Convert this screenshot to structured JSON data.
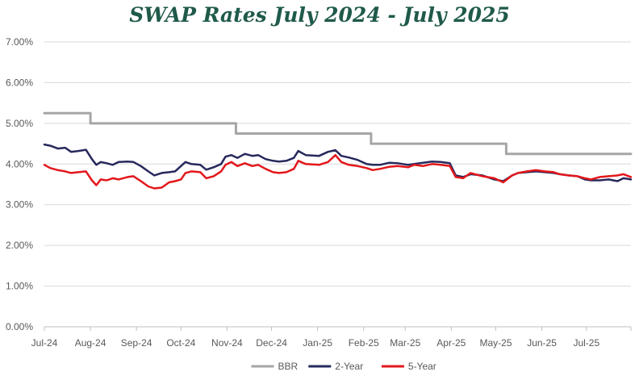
{
  "chart_data": {
    "type": "line",
    "title": "SWAP Rates July 2024 - July 2025",
    "xlabel": "",
    "ylabel": "",
    "y_tick_labels": [
      "0.00%",
      "1.00%",
      "2.00%",
      "3.00%",
      "4.00%",
      "5.00%",
      "6.00%",
      "7.00%"
    ],
    "ylim": [
      0,
      7
    ],
    "x_tick_labels": [
      "Jul-24",
      "Aug-24",
      "Sep-24",
      "Oct-24",
      "Nov-24",
      "Dec-24",
      "Jan-25",
      "Feb-25",
      "Mar-25",
      "Apr-25",
      "May-25",
      "Jun-25",
      "Jul-25"
    ],
    "x_range": [
      "2024-07-01",
      "2025-07-31"
    ],
    "grid": "horizontal",
    "legend_position": "bottom",
    "colors": {
      "BBR": "#a6a6a6",
      "2-Year": "#27295c",
      "5-Year": "#e3171b",
      "grid": "#d9d9d9",
      "axis": "#bfbfbf",
      "title": "#1f5a4a"
    },
    "series": [
      {
        "name": "BBR",
        "step": true,
        "points": [
          [
            "2024-07-01",
            5.25
          ],
          [
            "2024-08-01",
            5.0
          ],
          [
            "2024-11-07",
            4.75
          ],
          [
            "2025-02-06",
            4.5
          ],
          [
            "2025-05-08",
            4.25
          ],
          [
            "2025-07-31",
            4.25
          ]
        ]
      },
      {
        "name": "2-Year",
        "step": false,
        "points": [
          [
            "2024-07-01",
            4.48
          ],
          [
            "2024-07-05",
            4.45
          ],
          [
            "2024-07-10",
            4.38
          ],
          [
            "2024-07-15",
            4.4
          ],
          [
            "2024-07-19",
            4.3
          ],
          [
            "2024-07-24",
            4.32
          ],
          [
            "2024-07-29",
            4.35
          ],
          [
            "2024-08-02",
            4.12
          ],
          [
            "2024-08-05",
            3.98
          ],
          [
            "2024-08-08",
            4.05
          ],
          [
            "2024-08-12",
            4.02
          ],
          [
            "2024-08-16",
            3.98
          ],
          [
            "2024-08-20",
            4.05
          ],
          [
            "2024-08-26",
            4.06
          ],
          [
            "2024-08-30",
            4.05
          ],
          [
            "2024-09-04",
            3.95
          ],
          [
            "2024-09-09",
            3.82
          ],
          [
            "2024-09-13",
            3.72
          ],
          [
            "2024-09-18",
            3.78
          ],
          [
            "2024-09-23",
            3.8
          ],
          [
            "2024-09-27",
            3.82
          ],
          [
            "2024-10-01",
            3.95
          ],
          [
            "2024-10-04",
            4.05
          ],
          [
            "2024-10-08",
            4.0
          ],
          [
            "2024-10-14",
            3.98
          ],
          [
            "2024-10-18",
            3.86
          ],
          [
            "2024-10-23",
            3.92
          ],
          [
            "2024-10-28",
            4.0
          ],
          [
            "2024-10-31",
            4.18
          ],
          [
            "2024-11-04",
            4.22
          ],
          [
            "2024-11-08",
            4.15
          ],
          [
            "2024-11-13",
            4.25
          ],
          [
            "2024-11-18",
            4.2
          ],
          [
            "2024-11-22",
            4.22
          ],
          [
            "2024-11-27",
            4.12
          ],
          [
            "2024-12-02",
            4.08
          ],
          [
            "2024-12-06",
            4.06
          ],
          [
            "2024-12-11",
            4.08
          ],
          [
            "2024-12-16",
            4.15
          ],
          [
            "2024-12-19",
            4.32
          ],
          [
            "2024-12-24",
            4.22
          ],
          [
            "2025-01-02",
            4.2
          ],
          [
            "2025-01-08",
            4.3
          ],
          [
            "2025-01-13",
            4.34
          ],
          [
            "2025-01-17",
            4.2
          ],
          [
            "2025-01-22",
            4.16
          ],
          [
            "2025-01-28",
            4.1
          ],
          [
            "2025-02-03",
            4.0
          ],
          [
            "2025-02-07",
            3.98
          ],
          [
            "2025-02-12",
            3.98
          ],
          [
            "2025-02-18",
            4.03
          ],
          [
            "2025-02-24",
            4.02
          ],
          [
            "2025-03-03",
            3.98
          ],
          [
            "2025-03-07",
            4.0
          ],
          [
            "2025-03-13",
            4.03
          ],
          [
            "2025-03-19",
            4.06
          ],
          [
            "2025-03-25",
            4.05
          ],
          [
            "2025-03-31",
            4.02
          ],
          [
            "2025-04-04",
            3.72
          ],
          [
            "2025-04-09",
            3.68
          ],
          [
            "2025-04-14",
            3.75
          ],
          [
            "2025-04-22",
            3.72
          ],
          [
            "2025-04-30",
            3.62
          ],
          [
            "2025-05-06",
            3.58
          ],
          [
            "2025-05-12",
            3.72
          ],
          [
            "2025-05-16",
            3.78
          ],
          [
            "2025-05-22",
            3.8
          ],
          [
            "2025-05-28",
            3.82
          ],
          [
            "2025-06-03",
            3.8
          ],
          [
            "2025-06-09",
            3.78
          ],
          [
            "2025-06-13",
            3.75
          ],
          [
            "2025-06-19",
            3.72
          ],
          [
            "2025-06-25",
            3.7
          ],
          [
            "2025-06-30",
            3.62
          ],
          [
            "2025-07-04",
            3.6
          ],
          [
            "2025-07-10",
            3.6
          ],
          [
            "2025-07-16",
            3.62
          ],
          [
            "2025-07-22",
            3.58
          ],
          [
            "2025-07-26",
            3.65
          ],
          [
            "2025-07-31",
            3.62
          ]
        ]
      },
      {
        "name": "5-Year",
        "step": false,
        "points": [
          [
            "2024-07-01",
            3.98
          ],
          [
            "2024-07-05",
            3.9
          ],
          [
            "2024-07-10",
            3.85
          ],
          [
            "2024-07-15",
            3.82
          ],
          [
            "2024-07-19",
            3.78
          ],
          [
            "2024-07-24",
            3.8
          ],
          [
            "2024-07-29",
            3.82
          ],
          [
            "2024-08-02",
            3.6
          ],
          [
            "2024-08-05",
            3.48
          ],
          [
            "2024-08-08",
            3.62
          ],
          [
            "2024-08-12",
            3.6
          ],
          [
            "2024-08-16",
            3.65
          ],
          [
            "2024-08-20",
            3.62
          ],
          [
            "2024-08-26",
            3.68
          ],
          [
            "2024-08-30",
            3.7
          ],
          [
            "2024-09-04",
            3.58
          ],
          [
            "2024-09-09",
            3.45
          ],
          [
            "2024-09-13",
            3.4
          ],
          [
            "2024-09-18",
            3.42
          ],
          [
            "2024-09-23",
            3.55
          ],
          [
            "2024-09-27",
            3.58
          ],
          [
            "2024-10-01",
            3.62
          ],
          [
            "2024-10-04",
            3.78
          ],
          [
            "2024-10-08",
            3.82
          ],
          [
            "2024-10-14",
            3.8
          ],
          [
            "2024-10-18",
            3.65
          ],
          [
            "2024-10-23",
            3.7
          ],
          [
            "2024-10-28",
            3.82
          ],
          [
            "2024-10-31",
            3.98
          ],
          [
            "2024-11-04",
            4.05
          ],
          [
            "2024-11-08",
            3.95
          ],
          [
            "2024-11-13",
            4.02
          ],
          [
            "2024-11-18",
            3.95
          ],
          [
            "2024-11-22",
            3.98
          ],
          [
            "2024-11-27",
            3.88
          ],
          [
            "2024-12-02",
            3.8
          ],
          [
            "2024-12-06",
            3.78
          ],
          [
            "2024-12-11",
            3.8
          ],
          [
            "2024-12-16",
            3.88
          ],
          [
            "2024-12-19",
            4.08
          ],
          [
            "2024-12-24",
            4.0
          ],
          [
            "2025-01-02",
            3.98
          ],
          [
            "2025-01-08",
            4.05
          ],
          [
            "2025-01-13",
            4.22
          ],
          [
            "2025-01-17",
            4.05
          ],
          [
            "2025-01-22",
            3.98
          ],
          [
            "2025-01-28",
            3.95
          ],
          [
            "2025-02-03",
            3.9
          ],
          [
            "2025-02-07",
            3.85
          ],
          [
            "2025-02-12",
            3.88
          ],
          [
            "2025-02-18",
            3.93
          ],
          [
            "2025-02-24",
            3.95
          ],
          [
            "2025-03-03",
            3.92
          ],
          [
            "2025-03-07",
            3.98
          ],
          [
            "2025-03-13",
            3.95
          ],
          [
            "2025-03-19",
            4.0
          ],
          [
            "2025-03-25",
            3.98
          ],
          [
            "2025-03-31",
            3.95
          ],
          [
            "2025-04-04",
            3.68
          ],
          [
            "2025-04-09",
            3.65
          ],
          [
            "2025-04-14",
            3.78
          ],
          [
            "2025-04-22",
            3.7
          ],
          [
            "2025-04-30",
            3.65
          ],
          [
            "2025-05-06",
            3.55
          ],
          [
            "2025-05-12",
            3.72
          ],
          [
            "2025-05-16",
            3.78
          ],
          [
            "2025-05-22",
            3.82
          ],
          [
            "2025-05-28",
            3.85
          ],
          [
            "2025-06-03",
            3.82
          ],
          [
            "2025-06-09",
            3.8
          ],
          [
            "2025-06-13",
            3.75
          ],
          [
            "2025-06-19",
            3.72
          ],
          [
            "2025-06-25",
            3.7
          ],
          [
            "2025-06-30",
            3.65
          ],
          [
            "2025-07-04",
            3.62
          ],
          [
            "2025-07-10",
            3.68
          ],
          [
            "2025-07-16",
            3.7
          ],
          [
            "2025-07-22",
            3.72
          ],
          [
            "2025-07-26",
            3.75
          ],
          [
            "2025-07-31",
            3.68
          ]
        ]
      }
    ]
  }
}
